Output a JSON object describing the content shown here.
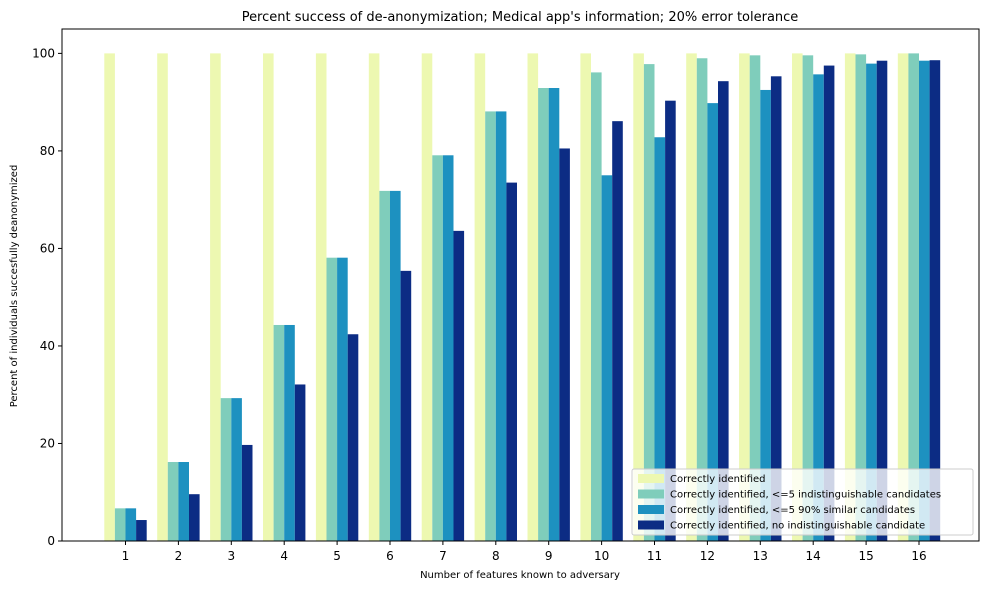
{
  "chart_data": {
    "type": "bar",
    "title": "Percent success of de-anonymization; Medical app's information; 20% error tolerance",
    "xlabel": "Number of features known to adversary",
    "ylabel": "Percent of individuals succesfully deanonymized",
    "categories": [
      "1",
      "2",
      "3",
      "4",
      "5",
      "6",
      "7",
      "8",
      "9",
      "10",
      "11",
      "12",
      "13",
      "14",
      "15",
      "16"
    ],
    "ylim": [
      0,
      105
    ],
    "yticks": [
      0,
      20,
      40,
      60,
      80,
      100
    ],
    "grid": false,
    "legend_position": "lower-right",
    "series": [
      {
        "name": "Correctly identified",
        "color": "#edf8b1",
        "values": [
          100,
          100,
          100,
          100,
          100,
          100,
          100,
          100,
          100,
          100,
          100,
          100,
          100,
          100,
          100,
          100
        ]
      },
      {
        "name": "Correctly identified, <=5 indistinguishable candidates",
        "color": "#7fcdbb",
        "values": [
          6.7,
          16.2,
          29.3,
          44.3,
          58.1,
          71.8,
          79.1,
          88.1,
          92.9,
          96.1,
          97.8,
          99.0,
          99.6,
          99.6,
          99.8,
          100
        ]
      },
      {
        "name": "Correctly identified, <=5 90% similar candidates",
        "color": "#1d91c0",
        "values": [
          6.7,
          16.2,
          29.3,
          44.3,
          58.1,
          71.8,
          79.1,
          88.1,
          92.9,
          75.0,
          82.8,
          89.8,
          92.5,
          95.7,
          97.9,
          98.5
        ]
      },
      {
        "name": "Correctly identified, no indistinguishable candidate",
        "color": "#0c2c84",
        "values": [
          4.3,
          9.6,
          19.7,
          32.1,
          42.4,
          55.4,
          63.6,
          73.5,
          80.5,
          86.1,
          90.3,
          94.3,
          95.3,
          97.5,
          98.5,
          98.6
        ]
      }
    ]
  }
}
